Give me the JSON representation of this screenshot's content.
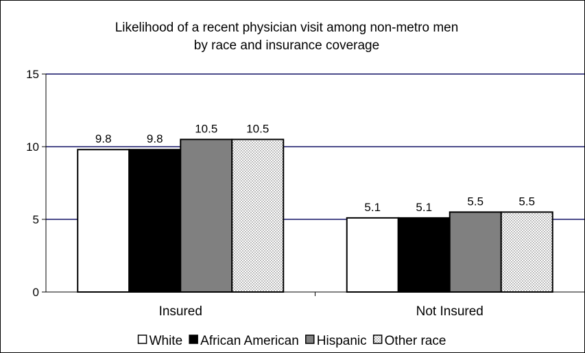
{
  "chart_data": {
    "type": "bar",
    "title": "Likelihood of a recent physician visit among non-metro men",
    "subtitle": "by race and insurance coverage",
    "categories": [
      "Insured",
      "Not Insured"
    ],
    "series": [
      {
        "name": "White",
        "values": [
          9.8,
          5.1
        ],
        "color": "#ffffff",
        "pattern": "solid"
      },
      {
        "name": "African American",
        "values": [
          9.8,
          5.1
        ],
        "color": "#000000",
        "pattern": "solid"
      },
      {
        "name": "Hispanic",
        "values": [
          10.5,
          5.5
        ],
        "color": "#808080",
        "pattern": "solid"
      },
      {
        "name": "Other race",
        "values": [
          10.5,
          5.5
        ],
        "color": "#ffffff",
        "pattern": "dots"
      }
    ],
    "y_ticks": [
      "0",
      "5",
      "10",
      "15"
    ],
    "ylim": [
      0,
      15
    ],
    "gridline_color": "#4a4a8a",
    "grid": true,
    "legend_position": "bottom",
    "xlabel": "",
    "ylabel": ""
  }
}
